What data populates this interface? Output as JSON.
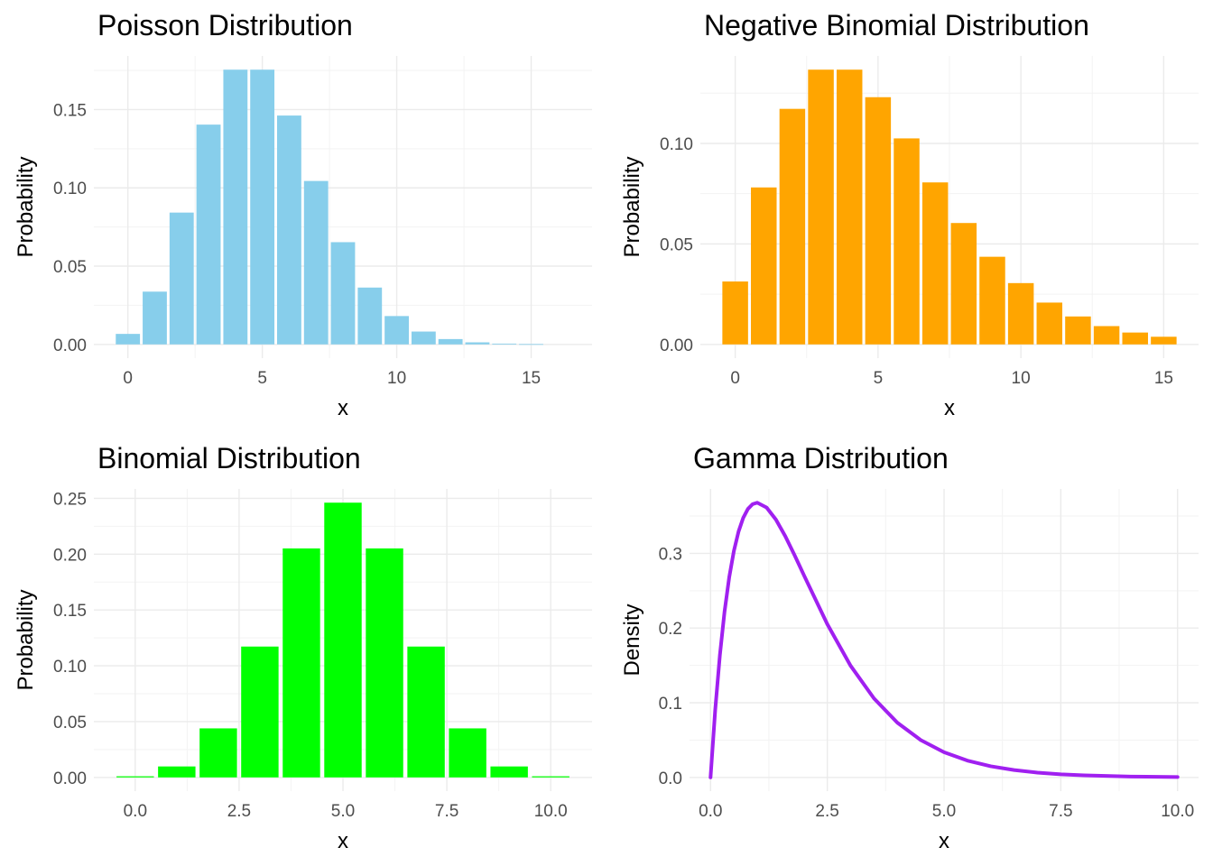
{
  "colors": {
    "poisson": "#87CEEB",
    "negbinom": "#FFA500",
    "binom": "#00FF00",
    "gamma": "#A020F0",
    "grid_major": "#EBEBEB",
    "grid_minor": "#F3F3F3",
    "tick_text": "#4D4D4D"
  },
  "chart_data": [
    {
      "type": "bar",
      "title": "Poisson Distribution",
      "xlabel": "x",
      "ylabel": "Probability",
      "x": [
        0,
        1,
        2,
        3,
        4,
        5,
        6,
        7,
        8,
        9,
        10,
        11,
        12,
        13,
        14,
        15
      ],
      "values": [
        0.0067,
        0.0337,
        0.0842,
        0.1404,
        0.1755,
        0.1755,
        0.1462,
        0.1044,
        0.0653,
        0.0363,
        0.0181,
        0.0082,
        0.0034,
        0.0013,
        0.0005,
        0.0002
      ],
      "xlim": [
        -0.5,
        16.5
      ],
      "ylim": [
        0,
        0.1755
      ],
      "xticks": [
        0,
        5,
        10,
        15
      ],
      "xtick_labels": [
        "0",
        "5",
        "10",
        "15"
      ],
      "yticks": [
        0,
        0.05,
        0.1,
        0.15
      ],
      "ytick_labels": [
        "0.00",
        "0.05",
        "0.10",
        "0.15"
      ],
      "grid": true
    },
    {
      "type": "bar",
      "title": "Negative Binomial Distribution",
      "xlabel": "x",
      "ylabel": "Probability",
      "x": [
        0,
        1,
        2,
        3,
        4,
        5,
        6,
        7,
        8,
        9,
        10,
        11,
        12,
        13,
        14,
        15
      ],
      "values": [
        0.0313,
        0.0781,
        0.1172,
        0.1367,
        0.1367,
        0.123,
        0.1025,
        0.0806,
        0.0604,
        0.0436,
        0.0305,
        0.0208,
        0.0139,
        0.0091,
        0.0059,
        0.0038
      ],
      "xlim": [
        -0.5,
        15.5
      ],
      "ylim": [
        0,
        0.1367
      ],
      "xticks": [
        0,
        5,
        10,
        15
      ],
      "xtick_labels": [
        "0",
        "5",
        "10",
        "15"
      ],
      "yticks": [
        0,
        0.05,
        0.1
      ],
      "ytick_labels": [
        "0.00",
        "0.05",
        "0.10"
      ],
      "grid": true
    },
    {
      "type": "bar",
      "title": "Binomial Distribution",
      "xlabel": "x",
      "ylabel": "Probability",
      "x": [
        0,
        1,
        2,
        3,
        4,
        5,
        6,
        7,
        8,
        9,
        10
      ],
      "values": [
        0.001,
        0.0098,
        0.0439,
        0.1172,
        0.2051,
        0.2461,
        0.2051,
        0.1172,
        0.0439,
        0.0098,
        0.001
      ],
      "xlim": [
        -0.5,
        10.5
      ],
      "ylim": [
        0,
        0.2461
      ],
      "xticks": [
        0,
        2.5,
        5,
        7.5,
        10
      ],
      "xtick_labels": [
        "0.0",
        "2.5",
        "5.0",
        "7.5",
        "10.0"
      ],
      "yticks": [
        0,
        0.05,
        0.1,
        0.15,
        0.2,
        0.25
      ],
      "ytick_labels": [
        "0.00",
        "0.05",
        "0.10",
        "0.15",
        "0.20",
        "0.25"
      ],
      "grid": true
    },
    {
      "type": "line",
      "title": "Gamma Distribution",
      "xlabel": "x",
      "ylabel": "Density",
      "x": [
        0,
        0.1,
        0.2,
        0.3,
        0.4,
        0.5,
        0.6,
        0.7,
        0.8,
        0.9,
        1.0,
        1.2,
        1.4,
        1.6,
        1.8,
        2.0,
        2.5,
        3.0,
        3.5,
        4.0,
        4.5,
        5.0,
        5.5,
        6.0,
        6.5,
        7.0,
        7.5,
        8.0,
        9.0,
        10.0
      ],
      "values": [
        0,
        0.0905,
        0.1637,
        0.2222,
        0.2681,
        0.3033,
        0.3293,
        0.3476,
        0.3595,
        0.3659,
        0.3679,
        0.3614,
        0.3452,
        0.323,
        0.2975,
        0.2707,
        0.2052,
        0.1494,
        0.1057,
        0.0733,
        0.05,
        0.0337,
        0.0225,
        0.0149,
        0.0098,
        0.0064,
        0.0041,
        0.0027,
        0.0011,
        0.0005
      ],
      "xlim": [
        0,
        10
      ],
      "ylim": [
        0,
        0.3679
      ],
      "xticks": [
        0,
        2.5,
        5,
        7.5,
        10
      ],
      "xtick_labels": [
        "0.0",
        "2.5",
        "5.0",
        "7.5",
        "10.0"
      ],
      "yticks": [
        0,
        0.1,
        0.2,
        0.3
      ],
      "ytick_labels": [
        "0.0",
        "0.1",
        "0.2",
        "0.3"
      ],
      "grid": true
    }
  ]
}
